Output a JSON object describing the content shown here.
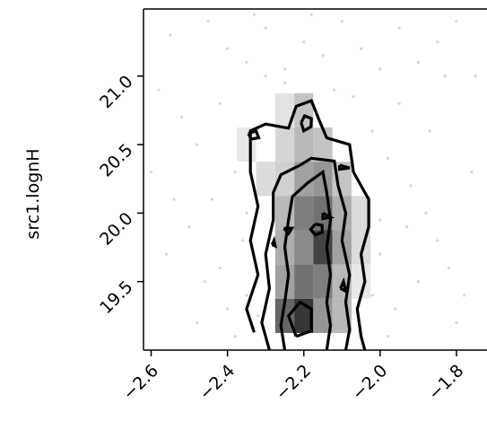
{
  "chart_data": {
    "type": "heatmap",
    "title": "",
    "xlabel": "",
    "ylabel": "src1.lognH",
    "xlim": [
      -2.62,
      -1.72
    ],
    "ylim": [
      19.0,
      21.49
    ],
    "x_ticks": [
      -2.6,
      -2.4,
      -2.2,
      -2.0,
      -1.8
    ],
    "x_tick_labels": [
      "−2.6",
      "−2.4",
      "−2.2",
      "−2.0",
      "−1.8"
    ],
    "y_ticks": [
      19.5,
      20.0,
      20.5,
      21.0
    ],
    "y_tick_labels": [
      "19.5",
      "20.0",
      "20.5",
      "21.0"
    ],
    "grid": false,
    "density_bins": [
      {
        "x": -2.35,
        "y": 20.5,
        "v": 0.1
      },
      {
        "x": -2.3,
        "y": 20.25,
        "v": 0.15
      },
      {
        "x": -2.25,
        "y": 20.75,
        "v": 0.12
      },
      {
        "x": -2.25,
        "y": 20.5,
        "v": 0.18
      },
      {
        "x": -2.25,
        "y": 20.25,
        "v": 0.2
      },
      {
        "x": -2.25,
        "y": 20.0,
        "v": 0.3
      },
      {
        "x": -2.25,
        "y": 19.75,
        "v": 0.35
      },
      {
        "x": -2.25,
        "y": 19.5,
        "v": 0.4
      },
      {
        "x": -2.25,
        "y": 19.25,
        "v": 0.65
      },
      {
        "x": -2.2,
        "y": 20.75,
        "v": 0.25
      },
      {
        "x": -2.2,
        "y": 20.5,
        "v": 0.3
      },
      {
        "x": -2.2,
        "y": 20.25,
        "v": 0.4
      },
      {
        "x": -2.2,
        "y": 20.0,
        "v": 0.55
      },
      {
        "x": -2.2,
        "y": 19.75,
        "v": 0.5
      },
      {
        "x": -2.2,
        "y": 19.5,
        "v": 0.6
      },
      {
        "x": -2.2,
        "y": 19.25,
        "v": 0.85
      },
      {
        "x": -2.15,
        "y": 20.5,
        "v": 0.25
      },
      {
        "x": -2.15,
        "y": 20.25,
        "v": 0.45
      },
      {
        "x": -2.15,
        "y": 20.0,
        "v": 0.6
      },
      {
        "x": -2.15,
        "y": 19.75,
        "v": 0.8
      },
      {
        "x": -2.15,
        "y": 19.5,
        "v": 0.55
      },
      {
        "x": -2.15,
        "y": 19.25,
        "v": 0.45
      },
      {
        "x": -2.1,
        "y": 20.25,
        "v": 0.25
      },
      {
        "x": -2.1,
        "y": 20.0,
        "v": 0.35
      },
      {
        "x": -2.1,
        "y": 19.75,
        "v": 0.4
      },
      {
        "x": -2.1,
        "y": 19.5,
        "v": 0.3
      },
      {
        "x": -2.1,
        "y": 19.25,
        "v": 0.3
      },
      {
        "x": -2.05,
        "y": 20.0,
        "v": 0.15
      },
      {
        "x": -2.05,
        "y": 19.75,
        "v": 0.15
      },
      {
        "x": -2.05,
        "y": 19.5,
        "v": 0.1
      }
    ],
    "contours": [
      [
        [
          -2.33,
          19.13
        ],
        [
          -2.35,
          19.3
        ],
        [
          -2.32,
          19.55
        ],
        [
          -2.34,
          19.8
        ],
        [
          -2.32,
          20.05
        ],
        [
          -2.34,
          20.3
        ],
        [
          -2.34,
          20.6
        ],
        [
          -2.3,
          20.65
        ],
        [
          -2.24,
          20.62
        ],
        [
          -2.22,
          20.78
        ],
        [
          -2.18,
          20.82
        ],
        [
          -2.16,
          20.68
        ],
        [
          -2.14,
          20.55
        ],
        [
          -2.08,
          20.5
        ],
        [
          -2.07,
          20.3
        ],
        [
          -2.05,
          20.2
        ],
        [
          -2.03,
          20.1
        ],
        [
          -2.03,
          19.9
        ],
        [
          -2.05,
          19.7
        ],
        [
          -2.04,
          19.5
        ],
        [
          -2.06,
          19.3
        ],
        [
          -2.05,
          19.1
        ],
        [
          -2.04,
          19.0
        ]
      ],
      [
        [
          -2.29,
          19.0
        ],
        [
          -2.31,
          19.2
        ],
        [
          -2.29,
          19.45
        ],
        [
          -2.3,
          19.7
        ],
        [
          -2.28,
          19.95
        ],
        [
          -2.28,
          20.15
        ],
        [
          -2.26,
          20.28
        ],
        [
          -2.21,
          20.35
        ],
        [
          -2.18,
          20.4
        ],
        [
          -2.12,
          20.38
        ],
        [
          -2.11,
          20.2
        ],
        [
          -2.09,
          20.0
        ],
        [
          -2.1,
          19.8
        ],
        [
          -2.08,
          19.55
        ],
        [
          -2.09,
          19.35
        ],
        [
          -2.08,
          19.15
        ],
        [
          -2.09,
          19.0
        ]
      ],
      [
        [
          -2.25,
          19.0
        ],
        [
          -2.26,
          19.18
        ],
        [
          -2.25,
          19.35
        ],
        [
          -2.24,
          19.55
        ],
        [
          -2.25,
          19.75
        ],
        [
          -2.24,
          19.95
        ],
        [
          -2.23,
          20.12
        ],
        [
          -2.19,
          20.22
        ],
        [
          -2.15,
          20.3
        ],
        [
          -2.14,
          20.15
        ],
        [
          -2.13,
          19.95
        ],
        [
          -2.14,
          19.75
        ],
        [
          -2.13,
          19.55
        ],
        [
          -2.14,
          19.35
        ],
        [
          -2.13,
          19.18
        ],
        [
          -2.14,
          19.0
        ]
      ],
      [
        [
          -2.22,
          19.1
        ],
        [
          -2.24,
          19.25
        ],
        [
          -2.21,
          19.35
        ],
        [
          -2.18,
          19.3
        ],
        [
          -2.18,
          19.14
        ],
        [
          -2.22,
          19.1
        ]
      ],
      [
        [
          -2.17,
          19.92
        ],
        [
          -2.182,
          19.88
        ],
        [
          -2.17,
          19.84
        ],
        [
          -2.152,
          19.86
        ],
        [
          -2.152,
          19.91
        ],
        [
          -2.17,
          19.92
        ]
      ],
      [
        [
          -2.207,
          20.66
        ],
        [
          -2.198,
          20.71
        ],
        [
          -2.18,
          20.69
        ],
        [
          -2.181,
          20.63
        ],
        [
          -2.2,
          20.6
        ],
        [
          -2.207,
          20.66
        ]
      ],
      [
        [
          -2.345,
          20.58
        ],
        [
          -2.325,
          20.6
        ],
        [
          -2.318,
          20.55
        ],
        [
          -2.338,
          20.54
        ],
        [
          -2.345,
          20.58
        ]
      ],
      [
        [
          -2.106,
          20.35
        ],
        [
          -2.08,
          20.33
        ],
        [
          -2.106,
          20.32
        ],
        [
          -2.106,
          20.35
        ]
      ],
      [
        [
          -2.15,
          20.0
        ],
        [
          -2.13,
          19.97
        ],
        [
          -2.15,
          19.96
        ],
        [
          -2.15,
          20.0
        ]
      ],
      [
        [
          -2.252,
          19.89
        ],
        [
          -2.24,
          19.85
        ],
        [
          -2.231,
          19.89
        ],
        [
          -2.252,
          19.89
        ]
      ],
      [
        [
          -2.104,
          19.45
        ],
        [
          -2.096,
          19.5
        ],
        [
          -2.09,
          19.43
        ],
        [
          -2.104,
          19.45
        ]
      ],
      [
        [
          -2.283,
          19.77
        ],
        [
          -2.278,
          19.8
        ],
        [
          -2.275,
          19.76
        ],
        [
          -2.283,
          19.77
        ]
      ]
    ],
    "scatter_points": [
      [
        -2.55,
        21.3
      ],
      [
        -2.45,
        21.4
      ],
      [
        -2.4,
        21.2
      ],
      [
        -2.35,
        21.1
      ],
      [
        -2.3,
        21.35
      ],
      [
        -2.25,
        21.05
      ],
      [
        -2.2,
        21.25
      ],
      [
        -2.15,
        21.15
      ],
      [
        -2.1,
        21.4
      ],
      [
        -2.05,
        21.2
      ],
      [
        -2.0,
        21.05
      ],
      [
        -1.95,
        21.35
      ],
      [
        -1.9,
        21.1
      ],
      [
        -1.85,
        21.25
      ],
      [
        -1.8,
        21.4
      ],
      [
        -1.75,
        21.0
      ],
      [
        -2.58,
        20.9
      ],
      [
        -2.52,
        20.7
      ],
      [
        -2.48,
        20.5
      ],
      [
        -2.42,
        20.8
      ],
      [
        -2.38,
        20.3
      ],
      [
        -2.44,
        20.1
      ],
      [
        -2.5,
        19.9
      ],
      [
        -2.56,
        19.7
      ],
      [
        -2.46,
        19.5
      ],
      [
        -2.4,
        19.3
      ],
      [
        -2.38,
        19.1
      ],
      [
        -2.42,
        19.6
      ],
      [
        -2.36,
        19.8
      ],
      [
        -2.35,
        20.0
      ],
      [
        -2.02,
        20.6
      ],
      [
        -1.98,
        20.4
      ],
      [
        -1.95,
        20.8
      ],
      [
        -1.92,
        20.2
      ],
      [
        -1.88,
        20.0
      ],
      [
        -1.85,
        19.8
      ],
      [
        -1.82,
        19.6
      ],
      [
        -1.78,
        19.4
      ],
      [
        -1.8,
        19.2
      ],
      [
        -1.9,
        19.5
      ],
      [
        -1.96,
        19.3
      ],
      [
        -2.0,
        19.7
      ],
      [
        -1.98,
        19.1
      ],
      [
        -2.48,
        19.2
      ],
      [
        -2.3,
        21.0
      ],
      [
        -2.25,
        20.95
      ],
      [
        -2.12,
        20.9
      ],
      [
        -2.07,
        20.85
      ],
      [
        -1.87,
        20.6
      ],
      [
        -1.76,
        20.3
      ],
      [
        -2.6,
        20.3
      ],
      [
        -2.54,
        20.1
      ],
      [
        -2.35,
        19.4
      ],
      [
        -2.32,
        19.25
      ],
      [
        -2.02,
        19.4
      ],
      [
        -2.0,
        19.95
      ],
      [
        -1.93,
        19.9
      ],
      [
        -1.83,
        21.0
      ],
      [
        -2.18,
        21.45
      ],
      [
        -2.33,
        21.45
      ]
    ]
  }
}
